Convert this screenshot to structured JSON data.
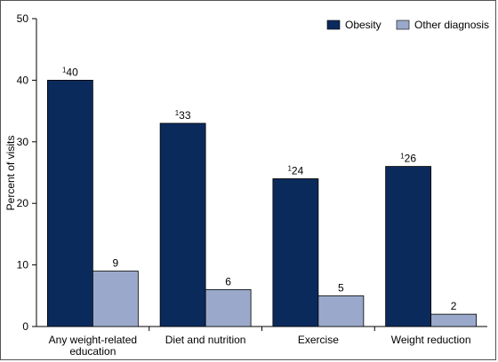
{
  "chart_data": {
    "type": "bar",
    "categories": [
      [
        "Any weight-related",
        "education"
      ],
      [
        "Diet and nutrition"
      ],
      [
        "Exercise"
      ],
      [
        "Weight reduction"
      ]
    ],
    "series": [
      {
        "name": "Obesity",
        "values": [
          40,
          33,
          24,
          26
        ],
        "labels": [
          "40",
          "33",
          "24",
          "26"
        ],
        "marker": "1",
        "color": "#0b2a5c"
      },
      {
        "name": "Other diagnosis",
        "values": [
          9,
          6,
          5,
          2
        ],
        "labels": [
          "9",
          "6",
          "5",
          "2"
        ],
        "marker": "",
        "color": "#9aa9cb"
      }
    ],
    "ylabel": "Percent of visits",
    "ylim": [
      0,
      50
    ],
    "yticks": [
      0,
      10,
      20,
      30,
      40,
      50
    ],
    "legend": "top-right",
    "grid": false
  }
}
